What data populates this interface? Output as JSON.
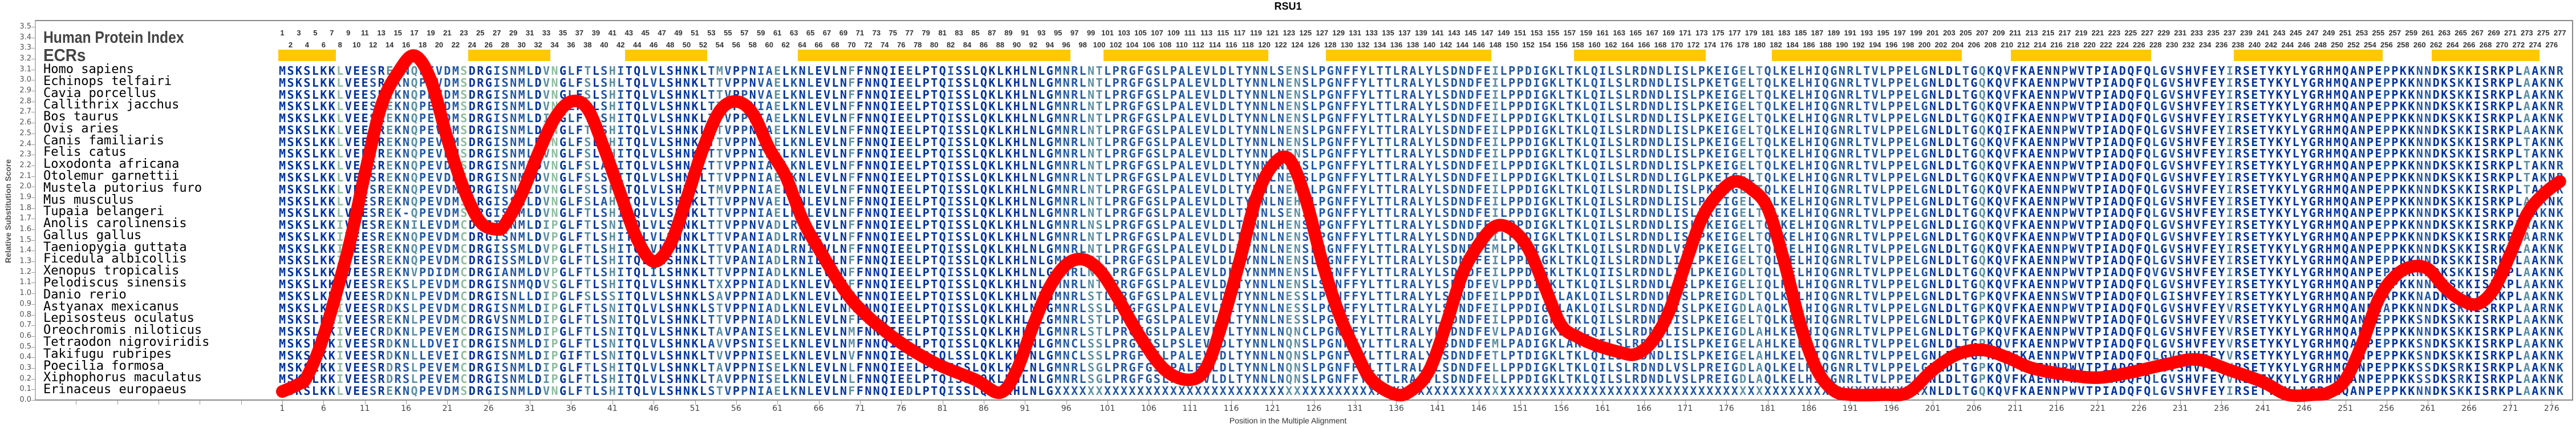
{
  "title": "RSU1",
  "labels": {
    "protein_index": "Human Protein Index",
    "ecrs": "ECRs"
  },
  "alignment_length": 277,
  "colors": {
    "ecr": "#ffc800",
    "curve": "#ff0000",
    "conserved": "#0033a0",
    "mostly": "#2157a6",
    "variable": "#5b8fa3",
    "divergent": "#8dbc9e"
  },
  "ecrs": [
    [
      1,
      7
    ],
    [
      24,
      33
    ],
    [
      43,
      52
    ],
    [
      64,
      96
    ],
    [
      101,
      120
    ],
    [
      128,
      147
    ],
    [
      158,
      173
    ],
    [
      182,
      204
    ],
    [
      211,
      227
    ],
    [
      238,
      255
    ],
    [
      262,
      274
    ]
  ],
  "species": [
    {
      "name": "Homo sapiens",
      "segments": [
        "MSKSLKKLVEESREKNQPEVDMSDRGISNMLDVNGLFTLSHITQLVLSHNKLTMVPPNIAEL",
        "KNLEVLNFFNNQIEELPTQISSLQKLKHLNLGMNRLNTLPRGFGSLPALEVLDLTYNN",
        "LSENSLPGNFFYLTTLRALYLSDNDFEILPPDIGKLTKLQILSLRDNDLISLPKEIGELTQ",
        "LKELHIQGNRLTVLPPELGNLDLTGQKQVFKAENNPWVTPIADQFQLGVSHVFEYI",
        "RSETYKYLYGRHMQANPEPPKKNNDKSKKISRKPLAAKNR"
      ]
    },
    {
      "name": "Echinops telfairi",
      "segments": [
        "MSKSLKKLVEESREKNQPEVDMSDRGISNMLDVNGLFSLSHLTQLVLSHNKLTTVPPNVAEL",
        "KNLEVLNFFNNQIEELPTQISSLQKLKHLNLGMNRLNTLPRGFGSLPALEVLDLTYNN",
        "LNENSLPGNFFYLTTLRALYLSDNDFEILPPDIGKLTKLQILSLRDNDLISLPKETGELTQ",
        "LKELHIQGNRLTVLPPELGNLDLTGQKQVFKAENNPWVTPIADQFQLGVSHVFEYI",
        "RSETYKYLYGRHMQANPEPPKKNNDKSKKISRKPLAAKNK"
      ]
    },
    {
      "name": "Cavia porcellus",
      "segments": [
        "MSKSLKKLVEESREKNQPEVDMSDRGISNMLDVNGLFSLSHITQLVLSHNKLTTVPPNVAEL",
        "KNLEVLNFFNNQIEELPTQISSLQKLKHLNLGMNRLNTLPRGFGSLPALEVLDLTYNN",
        "LNENSLPGNFFYLTTLRALYLSDNDFEILPPDIGKLTKLQILSLRDNDLISLPKEIGELTQ",
        "LKELHIQGNRLTVLPPELGNLDLTGQKQVFKAENNPWVTPIADQFQLGVSHVFEYI",
        "RSETYKYLYGRHMQANPEPPKKNNDKSKKISRKPLAAKNK"
      ]
    },
    {
      "name": "Callithrix jacchus",
      "segments": [
        "MSKSLKKLVEESREKNQPEVDMSDRGISNMLDVNGLFSLSHITQLVLSHNKLTTVPPNIAEL",
        "KNLEVLNFFNNQIEELPTQISSLQKLKHLNLGMNRLNTLPRGFGSLPALEVLDLTYNN",
        "LNENSLPGNFFYLTTLRALYLSDNDFEILPPDIGKLTKLQILSLRDNDLISLPKEIGELTQ",
        "LKELHIQGNRLTVLPPELGNLDLTGQKQVFKAENNPWVTPIADQFQLGVSHVFEYI",
        "RSETYKYLYGRHMQANPEPPKKNNDKSKKISRKPLAAKNR"
      ]
    },
    {
      "name": "Bos taurus",
      "segments": [
        "MSKSLKKLVEESREKNQPEVDMSDRGISNMLDINGLFTLSHITQLVLSHNKLTTVPPNIAEL",
        "KNLEVLNFFNNQIEELPTQISSLQKLKHLNLGMNRLNTLPRGFGSLPALEVLDLTYNN",
        "LNENSLPGNFFYLTTLRALYLSDNDFEILPPDIGKLTKLQILSLRDNDLISLPKEIGELTQ",
        "LKELHIQGNRLTVLPPELGNLDLTGQKQIFKAENNPWVTPIADQFQLGVSHVFEYI",
        "RSETYKYLYGRHMQANPEPPKKNNDKSKKISRKPLAAKNK"
      ]
    },
    {
      "name": "Ovis aries",
      "segments": [
        "MSKSLKKLVEESREKNQPEVDMSDRGISNMLDVNGLFTLSHITQLVLSHNKLTTVPPNIAEL",
        "KNLEVLNFFNNQIEELPTQISSLQKLKHLNLGMNRLNTLPRGFGSLPALEVLDLTYNN",
        "LNENSLPGNFFYLTTLRALYLSDNDFEILPPDIGKLTKLQILSLRDNDLISLPKEIGELTQ",
        "LKELHIQGNRLTVLPPELGNLDLTGQKQIFKAENNPWVTPIADQFQLGVSHVFEYI",
        "RSETYKYLYGRHMQANPEPPKKNNDKSKKISRKPLAAKNK"
      ]
    },
    {
      "name": "Canis familiaris",
      "segments": [
        "MSKSLKKLVEESREKNQPEVDMSDRGISNMLDVNGLFSLSHITQLVLSHNKLTTVPPNIAEL",
        "KNLEVLNFFNNQIEELPTQISSLQKLKHLNLGMNRLNTLPRGFGSLPALEVLDLTYNN",
        "LNENSLPGNFFYLTTLRALYLSDNDFEILPPDIGKLTKLQILSLRDNDLISLPKEIGELTQ",
        "LKELHIQGNRLTVLPPELGNLDLTGQKQVFKAENNPWVTPIADQFQLGVSHVFEYI",
        "RSETYKYLYGRHMQANPEPPKKNNDKSKKISRKPLTAKNK"
      ]
    },
    {
      "name": "Felis catus",
      "segments": [
        "MSKSLKKLVEESREKNQPEVDMSDRGISNMLDVNGLFSLSHITQLVLSHNKLTTVPPNIAEL",
        "KNLEVLNFFNNQIEELPTQISSLQKLKHLNLGMNRLNTLPRGFGSLPALEVLDLTYNN",
        "LNENSLPGNFFYLTTLRALYLSDNDFEILPPDIGKLTKLQILSLRDNDLISLPKEIGELTQ",
        "LKELHIQGNRLTVLPPELGNLDLTGQKQVFKAENNPWVTPIADQFQLGVSHVFEYI",
        "RSETYKYLYGRHMQANPEPPKKNNDKSKKISRKPLTAKNK"
      ]
    },
    {
      "name": "Loxodonta africana",
      "segments": [
        "MSKSLKKLVEESREKNQPEVDMSDRGISNMLDVNGLFSLAHITQLVLSHNKLTTVPPNIAEL",
        "KNLEVLNFFNNQIEELPTQISSLQKLKHLNLGMNRLNTLPRGFGSLPALEVLDLTYNN",
        "LNENSLPGNFFYLTTLRALYLSDNDFEILPPDIGKLTKLQILSLRDNDLISLPKEIGELTQ",
        "LKELHIQGNRLTVLPPELGNLDLTGQKQVFKAENNPWVTPIADQFQLGVSHVFEYI",
        "RSETYKYLYGRHMQANPEPPKKNNDKSKKISRKPLTAKNR"
      ]
    },
    {
      "name": "Otolemur garnettii",
      "segments": [
        "MSKSLKKLVEESREKNQPEVDMSDRGISNMLDVNGLFSLSHITQLVLSHNKLTTVPPNIAEL",
        "KNLEVLNFFNNQIEELPTQISSLQKLKHLNLGMNRLNTLPRGFGSLPALEVLDLTYNN",
        "LNENSLPGNFFYLTTLRALYLSDNDFEILPPDIGKLTKLQILSLRDNDLIGLPKEIGELTQ",
        "LKELHIQGNRLTVLPPELGNLDLTGQKQVFKAENNPWVTPIADQFQLGVSHVFEYI",
        "RSETYKYLYGRHMQANPEPPKKNNDKSKKISRKPLTAKNR"
      ]
    },
    {
      "name": "Mustela putorius furo",
      "segments": [
        "MSKSLKKLVEESREKNQPEVDMSDRGISNMLDVNGLFSLSHITQLVLSHNKLTMVPPNIAEL",
        "KNLEVLNFFNNQIEELPTQISSLQKLKHLNLGMNRLNTLPRGFGSLPALEVLDLTYNN",
        "LNEHSLPGNFFYLTTLRALYLSDNDFEILPPDIGKLTKLQILSLRDNDLISLPKEIGELTQ",
        "LKELHIQGNRLTVLPPELGNLDLTGQKQVFKAENNPWVTPIADQFQLGVSHVFEYI",
        "RSETYKYLYGRHMQANPEPPKKNNDKSKKISRKPLTAKNK"
      ]
    },
    {
      "name": "Mus musculus",
      "segments": [
        "MSKSLKKLVEESREKNQPEVDMSDRGISSMLDVNGLFSLAHITQLVLSHNKLTTVPPNVAEL",
        "KNLEVLNFFNNQIEELPTQISSLQKLKHLNLGMNRLNTLPRGFGSLPALEVLDLTYNN",
        "LNEHSLPGNFFYLTTLRALYLSDNDFEILPPDIGKLTKLQILSLRDNDLISLPKEIGELTQ",
        "LKELHIQGNRLTVLPPELGNLDLTGQKQVFKAENNPWVTPIADQFQLGVSHVFEYI",
        "RSETYKYLYGRHMQANPEPPKKNNDKSKKISRKPLAAKNK"
      ]
    },
    {
      "name": "Tupaia belangeri",
      "segments": [
        "MSKSLKKLVEESREK-QPEVDMSDRGISNMLDVNGLFTLSHITQLVLSHNKLTTVPPNIAEL",
        "KNLEVLNFFNNQIEELPTQISSLQKLKHLNLGMNRLNTLPRGFGSLPALEVLDLTYNN",
        "LSENSLPGNFFYLTTLRALYLSDNDFEILPPDIGKLTKLQILSLRDNDLISLPKEIGELTQ",
        "LKELHIQGNRLTVLPPELGNLDLTGQKQVFKAENNPWVTPIADQFQLGVSHVFEYI",
        "RSETYKYLYGRHMQANPEPPKKNNDKSKKISRKPLTAKNK"
      ]
    },
    {
      "name": "Anolis carolinensis",
      "segments": [
        "MSKSLKKIVEESREKNILEVDMCDRGISNMLDIPGLFTLSNITQLVLSHNKLTTVPPNVADL",
        "RNLEVLNFFNNQIEELPTQISSLQKLKHLNLGMNRLNSLPRGFGSLPALEVLDLTYNN",
        "LHENSLPGNFFYLTTLRALYLSDNDFEILPPDIGKLTKLQILSLRDNDLISLPKEIGELTQ",
        "LKELHIQGNRLTVLPPELGNLDLIGQKQVFKAENNPWVTPIADQFQLGVSHVFEYI",
        "RSETYKYLYGRHMQANPEPPKKNNDKSKKISRKPLAAKNK"
      ]
    },
    {
      "name": "Gallus gallus",
      "segments": [
        "MSKSLKKIVEESREKNQPEVDMCDRGISNMLDVPGLFTLSHITQLVLSHNKLTTVPANIADL",
        "RNIEVLNFFNNQIEELPTQISSLQKLKHLNLGMNRLNTLPRGFGSLPALEVLDLTYNN",
        "LNENSLPGNFFYLTTLRALYLSDNDFEILPPDIGKLTKLQILSLRDNDLISLPKEIGELTQ",
        "LKELHIQGNRLTVLPPELGNLDLTGQKQVFKAENNPWVTPIADQFQLGVSHVFEYI",
        "RSETYKYLYGRHMQANPEPPKKNNDKSKKISRKPLAARNK"
      ]
    },
    {
      "name": "Taeniopygia guttata",
      "segments": [
        "MSKSLKKIVEESREKNQPEVDMCDRGISSMLDVPGLFTLSHITQLVLSHNKLTTVPANIADL",
        "RNIEVLNFFNNQIEELPTQISSLQKLKHLNLGMNRLNTLPRGFGSLPALEVLDLTYNN",
        "LNENSLPGNFFYLTTLRALYLSDNDFEMLPPDIGKLTKLQILSLRDNDLVSLPKEIGELTQ",
        "LKELHIQGNRLTVLPPELGNLDLTGQKQVFKAENNPWVTPIADQFQLGVSHVFEYI",
        "RSETYKYLYGRHMQANPEPPKKNNDKSKKISRKPLAAKNK"
      ]
    },
    {
      "name": "Ficedula albicollis",
      "segments": [
        "MSKSLKKIVEESREKNQPEVDMCDRGISSMLDVPGLFTLSHITQLVLSHNKLTTVPANIADL",
        "RNIEVLNFFNNQIEELPTQISSLQKLKHLNLGMNRLNTLPRGFGSLPALEVLDLTYNN",
        "LNENSLPGNFFYLTTLRALYLSDNDFEILPPDIGKLTKLQILSLRDNDLISLPKEIGELTQ",
        "LKELHIQGNRLTVLPPELGNLDLTGQKQVFKAENNPWVTPIADQFQLGVSHVFEYI",
        "RSETYKYLYGRHMQANPEPPKKNNDKSKKISRKPLAAKNK"
      ]
    },
    {
      "name": "Xenopus tropicalis",
      "segments": [
        "MSKSLKKIVEESREKNVPDIDMCDRGIANMLDVPGLFTLSHITQLILSHNKLTTVPPNIADL",
        "KNLEVLNFFNNQIEELPTQISSLQKLKHLNLGMNRLNSLPRGFGSLPALEVLDLTYNN",
        "MNENSLPGNFFYLTTLRALYLSDNDFEILPPDIGKLTKLQIISLRDNDLISLPKEIGDLTQ",
        "LKELHIQGNRLTVLPPELGNLDLTGQKQVFKAENNPWVTPIADQFQVGVSHVFEYI",
        "RSETYKYLYGRHMQANPEPPKKNNDKSKKISRKPLAAKNK"
      ]
    },
    {
      "name": "Pelodiscus sinensis",
      "segments": [
        "MSKSLKKIVEESREKSLPEVDMCDRGISNMQDVSGLFTLSHITQLVLSHNKLTXXPPNIADL",
        "KNLEVLNFFNNQIEELPTQISSLQKLKHLNLGMNRLNTLPRGFGSLPALEVLDLTYNN",
        "LNENSLSGNFFYLTTLRALYLSDNDFEVLPPDIGKLTKLQILSLRDNDLISLPKEIGELIQ",
        "LKELHIQGNRLTVLPPELGNLDLTGQKQVFKAENNPWVTPIADQFQLGVSHVFEYI",
        "RSETYKYLYGRHMQANPEPPKKNNDKSKKISRKPLAAKNK"
      ]
    },
    {
      "name": "Danio rerio",
      "segments": [
        "MSKSLKKIVEESRDKNLPEVDMCDRGISNLLDIPGLFSLSSITQLVLSHNKLSAVPPNIADL",
        "KNLEVLNMFNNQIEELPTQISSLQKLKHLNLGMNRLSTLPRGFGSLPALEVLDLTYNN",
        "LNESSLPGNFFYLTTLRALYLSDNDFEILPPDIGKLAKLQILSLRDNDLISLPREIGDLTQ",
        "LKELHIQGNRLTVLPPELGNLDLTGPKQVFKAENNSWVTPIADQFQLGISHVFEYI",
        "RSETYKYLYGRHMQANPEAPKKNADKSKKISRKPLAAKNK"
      ]
    },
    {
      "name": "Astyanax mexicanus",
      "segments": [
        "MSKSLKKIVEESRDKSLPEVDMCDRGISNMLDIPGLFTLSNITQLVLSHNKLSTVPPNIADL",
        "KNLEVLNMFNNQIEELPTQISSLQKLKHLNLGMNRLSSLPRGFGSLPALEVLDLTYNN",
        "LNESSLPGNFFYLTTLRALYLSDNDFEILPPDIGKLAKLQILSLRDNDLISLPKEIGDLAQ",
        "LKELHIQGNRLTVLPPELGNLDLTGPKQVFKAENNPWVTPIADQFQLGVSHVFEYV",
        "RSETYKYLYGRHMQANPEAPKKNNDKSKKISRKPLAARNK"
      ]
    },
    {
      "name": "Lepisosteus oculatus",
      "segments": [
        "MSKSLKKIVEESREKNLPEVDMCDRGVSNMLDIPGLFTLSNITQLVLSHNKLTTVPPNIADL",
        "KNLEVLNFFNNQIEELPTQISSLQKLKHLNLGMNRLSTLPRGFGSLPALEVLDLTYNN",
        "LNESSLPGNFFYLTTLRALYLSDNDFEILPPDIGKLTKLQILSLRDNDLISLPKEIGELTQ",
        "LKELHIQGNRLTVLPPELGNLDLTGPKQVFKAENNPWVTPIADQFQLGVSHVFEYV",
        "RSETYKYLYGRHMQANPEPPKKSNDKSKKISRKPLAAKNK"
      ]
    },
    {
      "name": "Oreochromis niloticus",
      "segments": [
        "MSKSLKKIVEECRDKNLPEVEMCDRGISNMLDIPGLFTLSNITQLVLSHNKLTAVPANISEL",
        "KNLEVLNMFNNQIEELPTQISSLQKLKHLNLGMNRLSTLPRGFGSLPALEVLDLTYNN",
        "LNQNCLPGNFFYLTTLRALYLSDNDFEVLPADIGKLTKLQILSLRDNDLISLPKEIGDLAH",
        "LKELHIQGNRLTVLPPELGNLDLTGPKQVFKAENNPWVTPIADQFQLGVSHVFEYV",
        "RSETYKYLYGRHMQANPEPPKKNNDKSKKISRKPLAAKNK"
      ]
    },
    {
      "name": "Tetraodon nigroviridis",
      "segments": [
        "MSKSLKKIVEESRDKNLLDVEICDRGISNMLDIPGLFTLSNITQLVLSHNKLAVVPSNISEL",
        "KNLEVLNMFNNQIEELPTQISSLQKLKHLNLGMNCLSSLPRGFGSLPSLEVLDLTYNN",
        "LNQNSLPGNFFYLTTLRALYLSDNDFEMLPADIGKLAKLQILSLRDNDLISLPKEIGELAH",
        "LKELHIQGNRLTVLPPELGNLDLTGPKQVFKAENNPWVTPIADQFQLGVSHVFEYV",
        "RSETYKYLYGRHMQANPEPPKKSNDKSKKISRKPLAAKNK"
      ]
    },
    {
      "name": "Takifugu rubripes",
      "segments": [
        "MSKSLKKIVEESRDKNLLEVEICDRGISNMLDIPGIFTLSNITQLVLSHNKLTVVPPNISEL",
        "KNLEVLNVFNNQIEELPTQLSSLQKLKHLNLGMNCLSSLPRGFGSLPALEVLDLTYNN",
        "LNQNSLPGNFFYLTTLRALYLSDNDFETLPTDIGKLTKLQILSLRDNDLISLPKEIGELAH",
        "LKELHIQGNRLTVLPPELGNLDLTGPKQVFKAENNPWVTPIADQFQLGVSHVFEYV",
        "RSETYKYLYGRHMQANPEPPKKSNDKSKKISRKPLAAKNK"
      ]
    },
    {
      "name": "Poecilia formosa",
      "segments": [
        "MSKSLKKIVEESRDRSLPEVEMCDRGISNMLDIPGLFTLSHITQLVLSHNKLTAVPPNISEL",
        "KNLEVLNLFNNQIEELPTQISSLQKLKHLNLGMNRLSGLPRGFGSLPALEVLDLTYNN",
        "LNQNSLPGNFFYLTTLRALYLSDNDFELLPPDIGKLTKLQILSLRDNDLVSLPREIGDLAQ",
        "LKELHIQGNRLTVLPPELGNLDLTGPKQVFKAENNPWVTPIADQFQLGVSHVFEYV",
        "RSETYKYLYGRHMQANPEPPKKSSDKSRKISRKPLAAKNK"
      ]
    },
    {
      "name": "Xiphophorus maculatus",
      "segments": [
        "MSKSLKKIVEESRDRSLPEVEMCDRGISNMLDIPGLFTLSHITQLVLSHNKLTAVPPNISEL",
        "KNLEVLNLFNNQIEELPTQISSLQKLKHLNLGMNRLSGLPRGFGSLPALEVLDLTYNN",
        "LNQNSLPGNFFYLTTLRALYLSDNDFELLPPDIGKLTKLQILSLRDNDLVSLPREIGDLAQ",
        "LKELHIQGNRLTVLPPELGNLDLTGPKQVFKAENNPWVTPIADQFQLGVSHVFEYV",
        "RSETYKYLYGRHMQANPEPPKKSSDKSRKISRKPLAAKNK"
      ]
    },
    {
      "name": "Erinaceus europaeus",
      "segments": [
        "MSKSLKKLVEESREKNQPEVDMSDRGISNMLDVNGLFTLSHITQLVLSHNKLSTVPPNIAEL",
        "KNLEVLNFFNNQIEDLPTQISSLQKLKHLNLGXXXXXXXXXXXXXXXXXXXXXXXXXX",
        "XXXXXXXXXXXXXXXXXXXXXXXXXXXXXXXXXXXXXXXXXXXXXXXXXXXXXXXXXXXXX",
        "XXXXXXXXXXXXXXXXXXXNLDLTGQKQVFKAENNPWVTPIADQFQLGVSHVFEYI",
        "RSETYKYLYGRHMQANPEPPKKNNDKSKKISRKPLAAKNK"
      ]
    }
  ],
  "chart_data": {
    "type": "line",
    "title": "RSU1",
    "xlabel": "Position in the Multiple Alignment",
    "ylabel": "Relative Substitution Score",
    "xlim": [
      1,
      277
    ],
    "ylim": [
      0,
      3.5
    ],
    "ytick_step": 0.1,
    "xtick_start": 1,
    "xtick_step": 5,
    "grid": false,
    "series": [
      {
        "name": "Relative Substitution Score",
        "color": "#ff0000",
        "x": [
          1,
          3,
          4,
          6,
          9,
          11,
          13,
          15,
          17,
          19,
          21,
          23,
          25,
          27,
          28,
          30,
          32,
          34,
          36,
          38,
          40,
          42,
          44,
          46,
          48,
          50,
          52,
          54,
          56,
          58,
          60,
          62,
          64,
          66,
          70,
          75,
          80,
          85,
          88,
          90,
          92,
          94,
          96,
          98,
          100,
          102,
          105,
          108,
          111,
          113,
          115,
          117,
          119,
          121,
          123,
          125,
          127,
          129,
          131,
          133,
          136,
          138,
          140,
          142,
          144,
          146,
          148,
          150,
          152,
          154,
          156,
          158,
          160,
          163,
          165,
          167,
          169,
          171,
          173,
          175,
          177,
          179,
          181,
          183,
          185,
          187,
          189,
          191,
          195,
          198,
          201,
          204,
          207,
          210,
          213,
          217,
          221,
          225,
          229,
          233,
          237,
          241,
          244,
          247,
          249,
          251,
          253,
          255,
          257,
          259,
          261,
          263,
          265,
          267,
          269,
          271,
          273,
          275,
          277
        ],
        "y": [
          0.08,
          0.15,
          0.22,
          0.6,
          1.42,
          2.12,
          2.76,
          3.07,
          3.23,
          3.0,
          2.45,
          1.98,
          1.67,
          1.6,
          1.65,
          1.93,
          2.31,
          2.64,
          2.8,
          2.73,
          2.36,
          1.93,
          1.51,
          1.3,
          1.46,
          1.89,
          2.36,
          2.71,
          2.8,
          2.69,
          2.36,
          2.1,
          1.7,
          1.42,
          0.94,
          0.59,
          0.35,
          0.19,
          0.07,
          0.28,
          0.7,
          1.06,
          1.27,
          1.32,
          1.22,
          0.99,
          0.59,
          0.28,
          0.19,
          0.31,
          0.75,
          1.3,
          1.89,
          2.2,
          2.26,
          1.89,
          1.3,
          0.82,
          0.47,
          0.19,
          0.05,
          0.1,
          0.28,
          0.7,
          1.18,
          1.46,
          1.63,
          1.6,
          1.42,
          1.06,
          0.7,
          0.59,
          0.52,
          0.45,
          0.43,
          0.55,
          0.82,
          1.27,
          1.7,
          1.93,
          2.05,
          1.98,
          1.8,
          1.3,
          0.7,
          0.28,
          0.09,
          0.05,
          0.05,
          0.07,
          0.28,
          0.43,
          0.47,
          0.4,
          0.3,
          0.24,
          0.21,
          0.26,
          0.33,
          0.38,
          0.28,
          0.17,
          0.05,
          0.05,
          0.07,
          0.19,
          0.52,
          0.94,
          1.16,
          1.25,
          1.23,
          1.06,
          0.94,
          0.9,
          1.04,
          1.37,
          1.74,
          1.93,
          2.05
        ]
      }
    ]
  }
}
